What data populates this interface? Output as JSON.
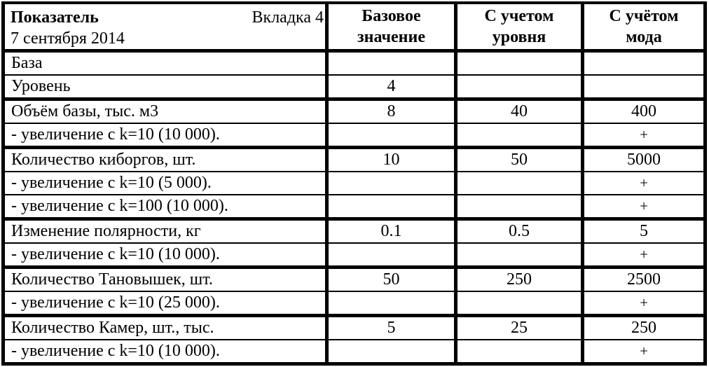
{
  "header": {
    "indicator_title": "Показатель",
    "tab_label": "Вкладка 4",
    "date": "7 сентября 2014",
    "base": {
      "line1": "Базовое",
      "line2": "значение"
    },
    "level": {
      "line1": "С учетом",
      "line2": "уровня"
    },
    "mod": {
      "line1": "С учётом",
      "line2": "мода"
    }
  },
  "groups": [
    {
      "rows": [
        {
          "label": "База",
          "base": "",
          "level": "",
          "mod": ""
        },
        {
          "label": "Уровень",
          "base": "4",
          "level": "",
          "mod": ""
        }
      ]
    },
    {
      "rows": [
        {
          "label": "Объём базы, тыс. м3",
          "base": "8",
          "level": "40",
          "mod": "400"
        },
        {
          "label": "- увеличение с k=10 (10 000).",
          "base": "",
          "level": "",
          "mod": "+"
        }
      ]
    },
    {
      "rows": [
        {
          "label": "Количество киборгов, шт.",
          "base": "10",
          "level": "50",
          "mod": "5000"
        },
        {
          "label": "- увеличение с k=10 (5 000).",
          "base": "",
          "level": "",
          "mod": "+"
        },
        {
          "label": "- увеличение с k=100 (10 000).",
          "base": "",
          "level": "",
          "mod": "+"
        }
      ]
    },
    {
      "rows": [
        {
          "label": "Изменение полярности, кг",
          "base": "0.1",
          "level": "0.5",
          "mod": "5"
        },
        {
          "label": "- увеличение с k=10 (10 000).",
          "base": "",
          "level": "",
          "mod": "+"
        }
      ]
    },
    {
      "rows": [
        {
          "label": "Количество Тановышек, шт.",
          "base": "50",
          "level": "250",
          "mod": "2500"
        },
        {
          "label": "- увеличение с k=10 (25 000).",
          "base": "",
          "level": "",
          "mod": "+"
        }
      ]
    },
    {
      "rows": [
        {
          "label": "Количество Камер, шт., тыс.",
          "base": "5",
          "level": "25",
          "mod": "250"
        },
        {
          "label": "- увеличение с k=10 (10 000).",
          "base": "",
          "level": "",
          "mod": "+"
        }
      ]
    }
  ],
  "colors": {
    "border": "#000000",
    "background": "#ffffff",
    "text": "#000000"
  }
}
